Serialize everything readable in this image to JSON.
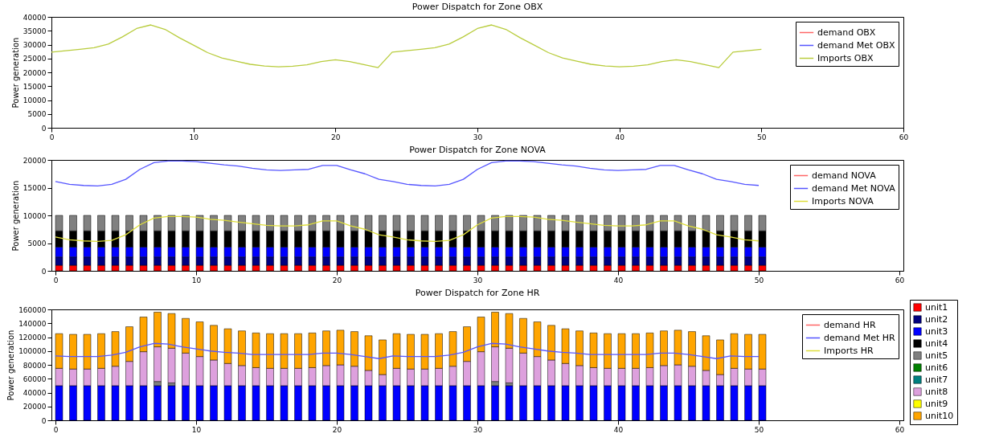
{
  "chart_data": [
    {
      "type": "line",
      "title": "Power Dispatch for Zone OBX",
      "ylabel": "Power generation",
      "x": [
        0,
        1,
        2,
        3,
        4,
        5,
        6,
        7,
        8,
        9,
        10,
        11,
        12,
        13,
        14,
        15,
        16,
        17,
        18,
        19,
        20,
        21,
        22,
        23,
        24,
        25,
        26,
        27,
        28,
        29,
        30,
        31,
        32,
        33,
        34,
        35,
        36,
        37,
        38,
        39,
        40,
        41,
        42,
        43,
        44,
        45,
        46,
        47,
        48,
        49,
        50
      ],
      "xlim": [
        0,
        60
      ],
      "xticks": [
        0,
        10,
        20,
        30,
        40,
        50,
        60
      ],
      "ylim": [
        0,
        40000
      ],
      "yticks": [
        0,
        5000,
        10000,
        15000,
        20000,
        25000,
        30000,
        35000,
        40000
      ],
      "legend": "top right",
      "series": [
        {
          "name": "demand OBX",
          "color": "#ff6666",
          "values": [
            null,
            null,
            null,
            null,
            null,
            null,
            null,
            null,
            null,
            null,
            null,
            null,
            null,
            null,
            null,
            null,
            null,
            null,
            null,
            null,
            null,
            null,
            null,
            null,
            null,
            null,
            null,
            null,
            null,
            null,
            null,
            null,
            null,
            null,
            null,
            null,
            null,
            null,
            null,
            null,
            null,
            null,
            null,
            null,
            null,
            null,
            null,
            null,
            null,
            null,
            null
          ]
        },
        {
          "name": "demand Met OBX",
          "color": "#5555ff",
          "values": [
            null,
            null,
            null,
            null,
            null,
            null,
            null,
            null,
            null,
            null,
            null,
            null,
            null,
            null,
            null,
            null,
            null,
            null,
            null,
            null,
            null,
            null,
            null,
            null,
            null,
            null,
            null,
            null,
            null,
            null,
            null,
            null,
            null,
            null,
            null,
            null,
            null,
            null,
            null,
            null,
            null,
            null,
            null,
            null,
            null,
            null,
            null,
            null,
            null,
            null,
            null
          ]
        },
        {
          "name": "Imports OBX",
          "color": "#b8cc3c",
          "values": [
            27300,
            27800,
            28300,
            28900,
            30200,
            32800,
            35800,
            37100,
            35500,
            32500,
            29800,
            27100,
            25200,
            24000,
            22900,
            22300,
            22000,
            22200,
            22700,
            23900,
            24500,
            23900,
            22800,
            21700,
            27300,
            27800,
            28300,
            28900,
            30200,
            32800,
            35800,
            37100,
            35500,
            32500,
            29800,
            27100,
            25200,
            24000,
            22900,
            22300,
            22000,
            22200,
            22700,
            23900,
            24500,
            23900,
            22800,
            21700,
            27300,
            27800,
            28300
          ]
        }
      ]
    },
    {
      "type": "bar",
      "stacked": true,
      "title": "Power Dispatch for Zone NOVA",
      "ylabel": "Power generation",
      "x": [
        0,
        1,
        2,
        3,
        4,
        5,
        6,
        7,
        8,
        9,
        10,
        11,
        12,
        13,
        14,
        15,
        16,
        17,
        18,
        19,
        20,
        21,
        22,
        23,
        24,
        25,
        26,
        27,
        28,
        29,
        30,
        31,
        32,
        33,
        34,
        35,
        36,
        37,
        38,
        39,
        40,
        41,
        42,
        43,
        44,
        45,
        46,
        47,
        48,
        49,
        50
      ],
      "xlim": [
        0,
        60
      ],
      "xticks": [
        0,
        10,
        20,
        30,
        40,
        50,
        60
      ],
      "ylim": [
        0,
        20000
      ],
      "yticks": [
        0,
        5000,
        10000,
        15000,
        20000
      ],
      "legend": "top right",
      "series": [
        {
          "color": "#ff0000",
          "values": [
            1000,
            1000,
            1000,
            1000,
            1000,
            1000,
            1000,
            1000,
            1000,
            1000,
            1000,
            1000,
            1000,
            1000,
            1000,
            1000,
            1000,
            1000,
            1000,
            1000,
            1000,
            1000,
            1000,
            1000,
            1000,
            1000,
            1000,
            1000,
            1000,
            1000,
            1000,
            1000,
            1000,
            1000,
            1000,
            1000,
            1000,
            1000,
            1000,
            1000,
            1000,
            1000,
            1000,
            1000,
            1000,
            1000,
            1000,
            1000,
            1000,
            1000,
            1000
          ]
        },
        {
          "color": "#000080",
          "values": [
            1500,
            1500,
            1500,
            1500,
            1500,
            1500,
            1500,
            1500,
            1500,
            1500,
            1500,
            1500,
            1500,
            1500,
            1500,
            1500,
            1500,
            1500,
            1500,
            1500,
            1500,
            1500,
            1500,
            1500,
            1500,
            1500,
            1500,
            1500,
            1500,
            1500,
            1500,
            1500,
            1500,
            1500,
            1500,
            1500,
            1500,
            1500,
            1500,
            1500,
            1500,
            1500,
            1500,
            1500,
            1500,
            1500,
            1500,
            1500,
            1500,
            1500,
            1500
          ]
        },
        {
          "color": "#0000ff",
          "values": [
            1800,
            1800,
            1800,
            1800,
            1800,
            1800,
            1800,
            1800,
            1800,
            1800,
            1800,
            1800,
            1800,
            1800,
            1800,
            1800,
            1800,
            1800,
            1800,
            1800,
            1800,
            1800,
            1800,
            1800,
            1800,
            1800,
            1800,
            1800,
            1800,
            1800,
            1800,
            1800,
            1800,
            1800,
            1800,
            1800,
            1800,
            1800,
            1800,
            1800,
            1800,
            1800,
            1800,
            1800,
            1800,
            1800,
            1800,
            1800,
            1800,
            1800,
            1800
          ]
        },
        {
          "color": "#000000",
          "values": [
            2900,
            2900,
            2900,
            2900,
            2900,
            2900,
            2900,
            2900,
            2900,
            2900,
            2900,
            2900,
            2900,
            2900,
            2900,
            2900,
            2900,
            2900,
            2900,
            2900,
            2900,
            2900,
            2900,
            2900,
            2900,
            2900,
            2900,
            2900,
            2900,
            2900,
            2900,
            2900,
            2900,
            2900,
            2900,
            2900,
            2900,
            2900,
            2900,
            2900,
            2900,
            2900,
            2900,
            2900,
            2900,
            2900,
            2900,
            2900,
            2900,
            2900,
            2900
          ]
        },
        {
          "color": "#808080",
          "values": [
            2800,
            2800,
            2800,
            2800,
            2800,
            2800,
            2800,
            2800,
            2800,
            2800,
            2800,
            2800,
            2800,
            2800,
            2800,
            2800,
            2800,
            2800,
            2800,
            2800,
            2800,
            2800,
            2800,
            2800,
            2800,
            2800,
            2800,
            2800,
            2800,
            2800,
            2800,
            2800,
            2800,
            2800,
            2800,
            2800,
            2800,
            2800,
            2800,
            2800,
            2800,
            2800,
            2800,
            2800,
            2800,
            2800,
            2800,
            2800,
            2800,
            2800,
            2800
          ]
        },
        {
          "type": "line",
          "name": "demand NOVA",
          "color": "#ff6666",
          "values": [
            null,
            null,
            null,
            null,
            null,
            null,
            null,
            null,
            null,
            null,
            null,
            null,
            null,
            null,
            null,
            null,
            null,
            null,
            null,
            null,
            null,
            null,
            null,
            null,
            null,
            null,
            null,
            null,
            null,
            null,
            null,
            null,
            null,
            null,
            null,
            null,
            null,
            null,
            null,
            null,
            null,
            null,
            null,
            null,
            null,
            null,
            null,
            null,
            null,
            null,
            null
          ]
        },
        {
          "type": "line",
          "name": "demand Met NOVA",
          "color": "#5555ff",
          "values": [
            16100,
            15600,
            15400,
            15300,
            15600,
            16500,
            18300,
            19500,
            19800,
            19800,
            19700,
            19400,
            19100,
            18900,
            18500,
            18200,
            18100,
            18200,
            18300,
            19000,
            19000,
            18200,
            17500,
            16500,
            16100,
            15600,
            15400,
            15300,
            15600,
            16500,
            18300,
            19500,
            19800,
            19800,
            19700,
            19400,
            19100,
            18900,
            18500,
            18200,
            18100,
            18200,
            18300,
            19000,
            19000,
            18200,
            17500,
            16500,
            16100,
            15600,
            15400
          ]
        },
        {
          "type": "line",
          "name": "Imports NOVA",
          "color": "#dede3a",
          "values": [
            6100,
            5600,
            5400,
            5300,
            5500,
            6500,
            8300,
            9500,
            9800,
            9800,
            9700,
            9300,
            9100,
            8800,
            8500,
            8200,
            8100,
            8100,
            8300,
            9000,
            9000,
            8100,
            7500,
            6500,
            6100,
            5600,
            5400,
            5300,
            5500,
            6500,
            8300,
            9500,
            9800,
            9800,
            9700,
            9300,
            9100,
            8800,
            8500,
            8200,
            8100,
            8100,
            8300,
            9000,
            9000,
            8100,
            7500,
            6500,
            6100,
            5600,
            5400
          ]
        }
      ]
    },
    {
      "type": "bar",
      "stacked": true,
      "title": "Power Dispatch for Zone HR",
      "ylabel": "Power generation",
      "x": [
        0,
        1,
        2,
        3,
        4,
        5,
        6,
        7,
        8,
        9,
        10,
        11,
        12,
        13,
        14,
        15,
        16,
        17,
        18,
        19,
        20,
        21,
        22,
        23,
        24,
        25,
        26,
        27,
        28,
        29,
        30,
        31,
        32,
        33,
        34,
        35,
        36,
        37,
        38,
        39,
        40,
        41,
        42,
        43,
        44,
        45,
        46,
        47,
        48,
        49,
        50
      ],
      "xlim": [
        0,
        60
      ],
      "xticks": [
        0,
        10,
        20,
        30,
        40,
        50,
        60
      ],
      "ylim": [
        0,
        160000
      ],
      "yticks": [
        0,
        20000,
        40000,
        60000,
        80000,
        100000,
        120000,
        140000,
        160000
      ],
      "legend": "top right",
      "series": [
        {
          "name": "unit1",
          "color": "#ff0000",
          "values": [
            0,
            0,
            0,
            0,
            0,
            0,
            0,
            0,
            0,
            0,
            0,
            0,
            0,
            0,
            0,
            0,
            0,
            0,
            0,
            0,
            0,
            0,
            0,
            0,
            0,
            0,
            0,
            0,
            0,
            0,
            0,
            0,
            0,
            0,
            0,
            0,
            0,
            0,
            0,
            0,
            0,
            0,
            0,
            0,
            0,
            0,
            0,
            0,
            0,
            0,
            0
          ]
        },
        {
          "name": "unit2",
          "color": "#000080",
          "values": [
            0,
            0,
            0,
            0,
            0,
            0,
            0,
            0,
            0,
            0,
            0,
            0,
            0,
            0,
            0,
            0,
            0,
            0,
            0,
            0,
            0,
            0,
            0,
            0,
            0,
            0,
            0,
            0,
            0,
            0,
            0,
            0,
            0,
            0,
            0,
            0,
            0,
            0,
            0,
            0,
            0,
            0,
            0,
            0,
            0,
            0,
            0,
            0,
            0,
            0,
            0
          ]
        },
        {
          "name": "unit3",
          "color": "#0000ff",
          "values": [
            50000,
            50000,
            50000,
            50000,
            50000,
            50000,
            50000,
            50000,
            50000,
            50000,
            50000,
            50000,
            50000,
            50000,
            50000,
            50000,
            50000,
            50000,
            50000,
            50000,
            50000,
            50000,
            50000,
            50000,
            50000,
            50000,
            50000,
            50000,
            50000,
            50000,
            50000,
            50000,
            50000,
            50000,
            50000,
            50000,
            50000,
            50000,
            50000,
            50000,
            50000,
            50000,
            50000,
            50000,
            50000,
            50000,
            50000,
            50000,
            50000,
            50000,
            50000
          ]
        },
        {
          "name": "unit4",
          "color": "#000000",
          "values": [
            0,
            0,
            0,
            0,
            0,
            0,
            0,
            0,
            0,
            0,
            0,
            0,
            0,
            0,
            0,
            0,
            0,
            0,
            0,
            0,
            0,
            0,
            0,
            0,
            0,
            0,
            0,
            0,
            0,
            0,
            0,
            0,
            0,
            0,
            0,
            0,
            0,
            0,
            0,
            0,
            0,
            0,
            0,
            0,
            0,
            0,
            0,
            0,
            0,
            0,
            0
          ]
        },
        {
          "name": "unit5",
          "color": "#808080",
          "values": [
            0,
            0,
            0,
            0,
            0,
            0,
            0,
            6000,
            4000,
            0,
            0,
            0,
            0,
            0,
            0,
            0,
            0,
            0,
            0,
            0,
            0,
            0,
            0,
            0,
            0,
            0,
            0,
            0,
            0,
            0,
            0,
            6000,
            4000,
            0,
            0,
            0,
            0,
            0,
            0,
            0,
            0,
            0,
            0,
            0,
            0,
            0,
            0,
            0,
            0,
            0,
            0
          ]
        },
        {
          "name": "unit6",
          "color": "#008000",
          "values": [
            0,
            0,
            0,
            0,
            0,
            0,
            0,
            0,
            0,
            0,
            0,
            0,
            0,
            0,
            0,
            0,
            0,
            0,
            0,
            0,
            0,
            0,
            0,
            0,
            0,
            0,
            0,
            0,
            0,
            0,
            0,
            0,
            0,
            0,
            0,
            0,
            0,
            0,
            0,
            0,
            0,
            0,
            0,
            0,
            0,
            0,
            0,
            0,
            0,
            0,
            0
          ]
        },
        {
          "name": "unit7",
          "color": "#008080",
          "values": [
            0,
            0,
            0,
            0,
            0,
            0,
            0,
            0,
            0,
            0,
            0,
            0,
            0,
            0,
            0,
            0,
            0,
            0,
            0,
            0,
            0,
            0,
            0,
            0,
            0,
            0,
            0,
            0,
            0,
            0,
            0,
            0,
            0,
            0,
            0,
            0,
            0,
            0,
            0,
            0,
            0,
            0,
            0,
            0,
            0,
            0,
            0,
            0,
            0,
            0,
            0
          ]
        },
        {
          "name": "unit8",
          "color": "#dda0dd",
          "values": [
            25000,
            24000,
            24000,
            25000,
            28000,
            35000,
            49000,
            50000,
            50000,
            47000,
            42000,
            37000,
            32000,
            29000,
            26000,
            25000,
            25000,
            25000,
            26000,
            29000,
            30000,
            28000,
            22000,
            16000,
            25000,
            24000,
            24000,
            25000,
            28000,
            35000,
            49000,
            50000,
            50000,
            47000,
            42000,
            37000,
            32000,
            29000,
            26000,
            25000,
            25000,
            25000,
            26000,
            29000,
            30000,
            28000,
            22000,
            16000,
            25000,
            24000,
            24000
          ]
        },
        {
          "name": "unit9",
          "color": "#ffff00",
          "values": [
            0,
            0,
            0,
            0,
            0,
            0,
            0,
            0,
            0,
            0,
            0,
            0,
            0,
            0,
            0,
            0,
            0,
            0,
            0,
            0,
            0,
            0,
            0,
            0,
            0,
            0,
            0,
            0,
            0,
            0,
            0,
            0,
            0,
            0,
            0,
            0,
            0,
            0,
            0,
            0,
            0,
            0,
            0,
            0,
            0,
            0,
            0,
            0,
            0,
            0,
            0
          ]
        },
        {
          "name": "unit10",
          "color": "#ffa500",
          "values": [
            50000,
            50000,
            50000,
            50000,
            50000,
            50000,
            50000,
            50000,
            50000,
            50000,
            50000,
            50000,
            50000,
            50000,
            50000,
            50000,
            50000,
            50000,
            50000,
            50000,
            50000,
            50000,
            50000,
            50000,
            50000,
            50000,
            50000,
            50000,
            50000,
            50000,
            50000,
            50000,
            50000,
            50000,
            50000,
            50000,
            50000,
            50000,
            50000,
            50000,
            50000,
            50000,
            50000,
            50000,
            50000,
            50000,
            50000,
            50000,
            50000,
            50000,
            50000
          ]
        },
        {
          "type": "line",
          "name": "demand HR",
          "color": "#ff6666",
          "values": [
            null,
            null,
            null,
            null,
            null,
            null,
            null,
            null,
            null,
            null,
            null,
            null,
            null,
            null,
            null,
            null,
            null,
            null,
            null,
            null,
            null,
            null,
            null,
            null,
            null,
            null,
            null,
            null,
            null,
            null,
            null,
            null,
            null,
            null,
            null,
            null,
            null,
            null,
            null,
            null,
            null,
            null,
            null,
            null,
            null,
            null,
            null,
            null,
            null,
            null,
            null
          ]
        },
        {
          "type": "line",
          "name": "demand Met HR",
          "color": "#5555ff",
          "values": [
            93000,
            92000,
            92000,
            92000,
            94000,
            98000,
            106000,
            111000,
            110000,
            106000,
            103000,
            100000,
            98000,
            97000,
            95000,
            95000,
            95000,
            95000,
            95000,
            97000,
            97000,
            95000,
            92000,
            89000,
            93000,
            92000,
            92000,
            92000,
            94000,
            98000,
            106000,
            111000,
            110000,
            106000,
            103000,
            100000,
            98000,
            97000,
            95000,
            95000,
            95000,
            95000,
            95000,
            97000,
            97000,
            95000,
            92000,
            89000,
            93000,
            92000,
            92000
          ]
        },
        {
          "type": "line",
          "name": "Imports HR",
          "color": "#dede3a",
          "values": [
            null,
            null,
            null,
            null,
            null,
            null,
            null,
            null,
            null,
            null,
            null,
            null,
            null,
            null,
            null,
            null,
            null,
            null,
            null,
            null,
            null,
            null,
            null,
            null,
            null,
            null,
            null,
            null,
            null,
            null,
            null,
            null,
            null,
            null,
            null,
            null,
            null,
            null,
            null,
            null,
            null,
            null,
            null,
            null,
            null,
            null,
            null,
            null,
            null,
            null,
            null
          ]
        }
      ]
    }
  ]
}
